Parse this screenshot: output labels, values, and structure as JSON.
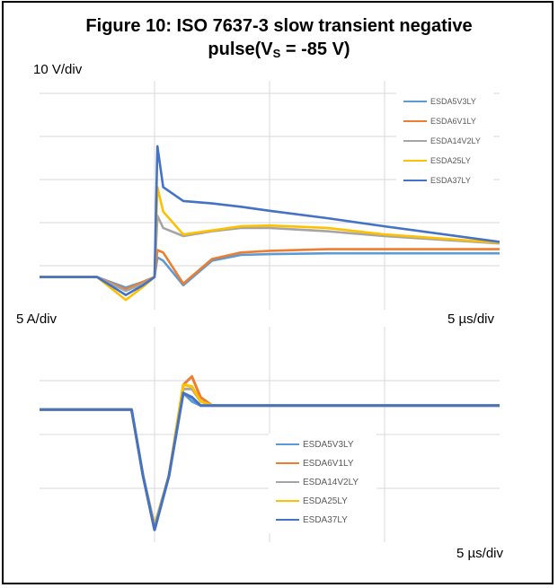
{
  "figure": {
    "title_line1": "Figure 10: ISO 7637-3 slow transient negative",
    "title_line2_prefix": "pulse(V",
    "title_line2_sub": "S",
    "title_line2_suffix": " = -85 V)"
  },
  "colors": {
    "ESDA5V3LY": "#5b9bd5",
    "ESDA6V1LY": "#ed7d31",
    "ESDA14V2LY": "#a5a5a5",
    "ESDA25LY": "#ffc000",
    "ESDA37LY": "#4472c4",
    "grid": "#d9d9d9"
  },
  "chart_data": [
    {
      "type": "line",
      "panel": "voltage",
      "scale_label": "10 V/div",
      "time_label": "5 µs/div",
      "grid": true,
      "legend_position": "top-right",
      "legend": [
        "ESDA5V3LY",
        "ESDA6V1LY",
        "ESDA14V2LY",
        "ESDA25LY",
        "ESDA37LY"
      ],
      "series": [
        {
          "name": "ESDA5V3LY",
          "x": [
            0,
            2,
            3,
            3.6,
            4,
            4.1,
            4.3,
            5,
            6,
            7,
            8,
            10,
            12,
            16
          ],
          "y": [
            0,
            0,
            -1.3,
            -0.6,
            0,
            2.4,
            2.0,
            -1.0,
            2.0,
            2.7,
            2.8,
            2.9,
            2.9,
            2.9
          ]
        },
        {
          "name": "ESDA6V1LY",
          "x": [
            0,
            2,
            3,
            3.6,
            4,
            4.1,
            4.3,
            5,
            6,
            7,
            8,
            10,
            12,
            16
          ],
          "y": [
            0,
            0,
            -1.5,
            -0.6,
            0,
            3.3,
            3.0,
            -0.8,
            2.2,
            3.0,
            3.2,
            3.4,
            3.4,
            3.4
          ]
        },
        {
          "name": "ESDA14V2LY",
          "x": [
            0,
            2,
            3,
            3.6,
            4,
            4.1,
            4.3,
            5,
            6,
            7,
            8,
            10,
            12,
            16
          ],
          "y": [
            0,
            0,
            -1.7,
            -0.8,
            0,
            7.5,
            6.0,
            5.0,
            5.6,
            6.0,
            6.0,
            5.6,
            5.0,
            4.1
          ]
        },
        {
          "name": "ESDA25LY",
          "x": [
            0,
            2,
            3,
            3.6,
            4,
            4.1,
            4.3,
            5,
            6,
            7,
            8,
            10,
            12,
            16
          ],
          "y": [
            0,
            0,
            -2.8,
            -1.2,
            0,
            11.0,
            8.0,
            5.2,
            5.7,
            6.2,
            6.3,
            6.0,
            5.2,
            4.2
          ]
        },
        {
          "name": "ESDA37LY",
          "x": [
            0,
            2,
            3,
            3.6,
            4,
            4.1,
            4.3,
            5,
            6,
            7,
            8,
            10,
            12,
            16
          ],
          "y": [
            0,
            0,
            -2.2,
            -1.0,
            0,
            16.0,
            11.0,
            9.3,
            9.0,
            8.6,
            8.1,
            7.2,
            6.2,
            4.3
          ]
        }
      ]
    },
    {
      "type": "line",
      "panel": "current",
      "scale_label": "5 A/div",
      "time_label": "5 µs/div",
      "grid": true,
      "legend_position": "bottom-center",
      "legend": [
        "ESDA5V3LY",
        "ESDA6V1LY",
        "ESDA14V2LY",
        "ESDA25LY",
        "ESDA37LY"
      ],
      "series": [
        {
          "name": "ESDA5V3LY",
          "x": [
            0,
            3.2,
            3.6,
            4.0,
            4.5,
            5.0,
            5.3,
            5.6,
            6.0,
            16
          ],
          "y": [
            0,
            0,
            -8,
            -14,
            -8,
            2,
            1,
            0.5,
            0.5,
            0.5
          ]
        },
        {
          "name": "ESDA6V1LY",
          "x": [
            0,
            3.2,
            3.6,
            4.0,
            4.5,
            5.0,
            5.3,
            5.6,
            6.0,
            16
          ],
          "y": [
            0,
            0,
            -8,
            -14.5,
            -8,
            3,
            4,
            1.5,
            0.5,
            0.5
          ]
        },
        {
          "name": "ESDA14V2LY",
          "x": [
            0,
            3.2,
            3.6,
            4.0,
            4.5,
            5.0,
            5.3,
            5.6,
            6.0,
            16
          ],
          "y": [
            0,
            0,
            -8,
            -14,
            -8,
            2.5,
            2.5,
            1,
            0.5,
            0.5
          ]
        },
        {
          "name": "ESDA25LY",
          "x": [
            0,
            3.2,
            3.6,
            4.0,
            4.5,
            5.0,
            5.3,
            5.6,
            6.0,
            16
          ],
          "y": [
            0,
            0,
            -8,
            -14.2,
            -8,
            3,
            2.8,
            1,
            0.5,
            0.5
          ]
        },
        {
          "name": "ESDA37LY",
          "x": [
            0,
            3.2,
            3.6,
            4.0,
            4.5,
            5.0,
            5.3,
            5.6,
            6.0,
            16
          ],
          "y": [
            0,
            0,
            -8,
            -14.5,
            -8,
            2,
            1.5,
            0.5,
            0.5,
            0.5
          ]
        }
      ]
    }
  ]
}
